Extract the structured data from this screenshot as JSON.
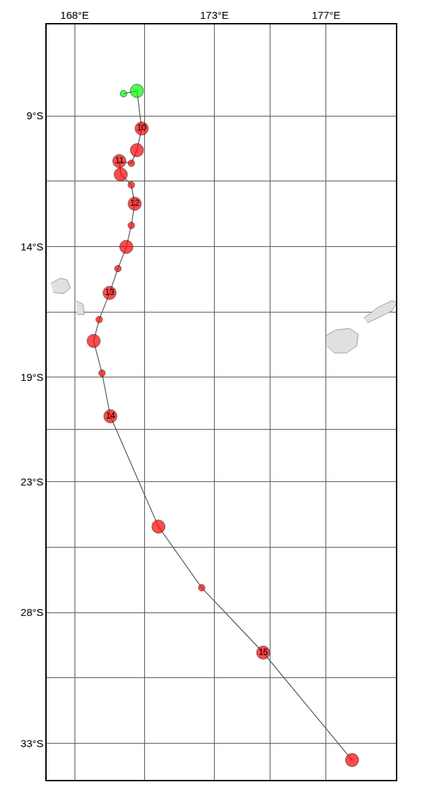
{
  "chart_data": {
    "type": "scatter",
    "line_style": "solid",
    "grid": true,
    "x": [
      169.75,
      170.23,
      170.4,
      170.23,
      170.03,
      169.6,
      169.65,
      170.03,
      170.15,
      170.03,
      169.85,
      169.55,
      169.25,
      168.88,
      168.68,
      168.98,
      169.28,
      171.0,
      172.55,
      174.75,
      177.93
    ],
    "values": [
      -8.15,
      -8.04,
      -9.48,
      -10.31,
      -10.81,
      -10.73,
      -11.24,
      -11.64,
      -12.36,
      -13.19,
      -14.01,
      -14.84,
      -15.77,
      -16.79,
      -17.61,
      -18.84,
      -20.49,
      -24.71,
      -27.05,
      -29.53,
      -33.64
    ],
    "labels": [
      null,
      null,
      "10",
      null,
      null,
      "11",
      null,
      null,
      "12",
      null,
      null,
      null,
      "13",
      null,
      null,
      null,
      "14",
      null,
      null,
      "15",
      null
    ],
    "colors": [
      "#00ff00",
      "#00ff00",
      "#ff0000",
      "#ff0000",
      "#ff0000",
      "#ff0000",
      "#ff0000",
      "#ff0000",
      "#ff0000",
      "#ff0000",
      "#ff0000",
      "#ff0000",
      "#ff0000",
      "#ff0000",
      "#ff0000",
      "#ff0000",
      "#ff0000",
      "#ff0000",
      "#ff0000",
      "#ff0000",
      "#ff0000"
    ],
    "sizes": [
      1,
      2,
      2,
      2,
      1,
      2,
      2,
      1,
      2,
      1,
      2,
      1,
      2,
      1,
      2,
      1,
      2,
      2,
      1,
      2,
      2
    ],
    "land": [
      {
        "x": [
          177.0,
          177.35,
          177.85,
          178.15,
          178.1,
          177.73,
          177.3,
          177.03
        ],
        "y": [
          -17.4,
          -17.19,
          -17.13,
          -17.35,
          -17.8,
          -18.07,
          -18.07,
          -17.8
        ]
      },
      {
        "x": [
          178.35,
          178.85,
          179.35,
          179.55,
          179.35,
          178.85,
          178.48
        ],
        "y": [
          -16.73,
          -16.33,
          -16.07,
          -16.12,
          -16.47,
          -16.73,
          -16.92
        ]
      },
      {
        "x": [
          167.15,
          167.48,
          167.73,
          167.85,
          167.6,
          167.23
        ],
        "y": [
          -15.4,
          -15.21,
          -15.27,
          -15.59,
          -15.8,
          -15.75
        ]
      },
      {
        "x": [
          168.05,
          168.3,
          168.35,
          168.1
        ],
        "y": [
          -16.07,
          -16.2,
          -16.6,
          -16.6
        ]
      }
    ],
    "xlim": [
      167.0,
      179.5
    ],
    "ylim": [
      -34.4,
      -5.5
    ],
    "xticks": [
      {
        "value": 168,
        "label": "168°E"
      },
      {
        "value": 173,
        "label": "173°E"
      },
      {
        "value": 177,
        "label": "177°E"
      }
    ],
    "yticks": [
      {
        "value": -9,
        "label": "9°S"
      },
      {
        "value": -14,
        "label": "14°S"
      },
      {
        "value": -19,
        "label": "19°S"
      },
      {
        "value": -23,
        "label": "23°S"
      },
      {
        "value": -28,
        "label": "28°S"
      },
      {
        "value": -33,
        "label": "33°S"
      }
    ]
  }
}
